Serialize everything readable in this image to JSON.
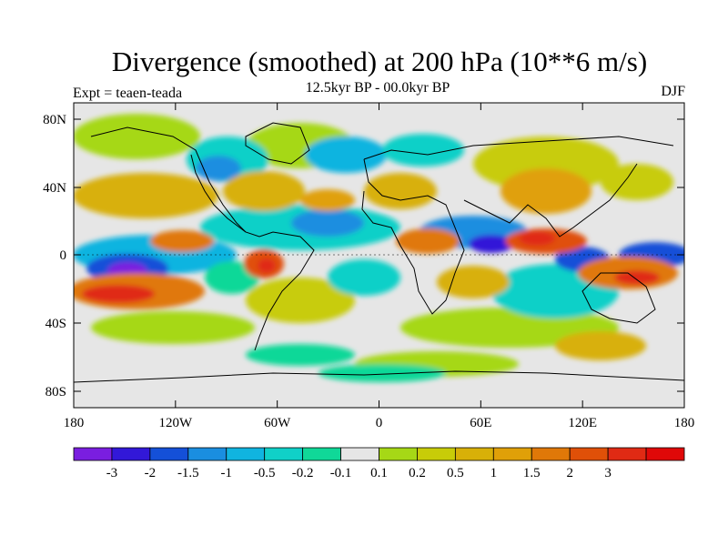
{
  "map": {
    "title": "Divergence (smoothed) at 200 hPa (10**6 m/s)",
    "subtitle": "12.5kyr BP - 00.0kyr BP",
    "left_label": "Expt = teaen-teada",
    "right_label": "DJF",
    "lat_ticks": [
      "80N",
      "40N",
      "0",
      "40S",
      "80S"
    ],
    "lon_ticks": [
      "180",
      "120W",
      "60W",
      "0",
      "60E",
      "120E",
      "180"
    ],
    "colorbar": {
      "colors": [
        "#7a1ee0",
        "#3218d8",
        "#1450d8",
        "#1a8ee0",
        "#10b4e0",
        "#10d0c8",
        "#10d898",
        "#e6e6e6",
        "#a6d816",
        "#c8cc08",
        "#d8b008",
        "#e0a008",
        "#e07808",
        "#e05008",
        "#e02a14",
        "#e00808"
      ],
      "labels": [
        "-3",
        "-2",
        "-1.5",
        "-1",
        "-0.5",
        "-0.2",
        "-0.1",
        "0.1",
        "0.2",
        "0.5",
        "1",
        "1.5",
        "2",
        "3"
      ]
    }
  }
}
